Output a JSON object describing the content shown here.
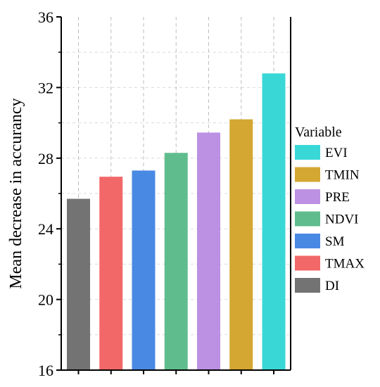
{
  "chart_data": {
    "type": "bar",
    "ylabel": "Mean decrease in accurancy",
    "xlabel": "",
    "ylim": [
      16,
      36
    ],
    "yticks": [
      "16",
      "20",
      "24",
      "28",
      "32",
      "36"
    ],
    "grid": true,
    "categories": [
      "DI",
      "TMAX",
      "SM",
      "NDVI",
      "PRE",
      "TMIN",
      "EVI"
    ],
    "values": [
      25.7,
      26.95,
      27.3,
      28.3,
      29.45,
      30.2,
      32.8
    ],
    "colors": [
      "#737373",
      "#f26868",
      "#4a89e3",
      "#5fbd8d",
      "#bc90e3",
      "#d4a732",
      "#3ad7d7"
    ],
    "legend": {
      "title": "Variable",
      "placement": "right",
      "items": [
        {
          "label": "EVI",
          "color": "#3ad7d7"
        },
        {
          "label": "TMIN",
          "color": "#d4a732"
        },
        {
          "label": "PRE",
          "color": "#bc90e3"
        },
        {
          "label": "NDVI",
          "color": "#5fbd8d"
        },
        {
          "label": "SM",
          "color": "#4a89e3"
        },
        {
          "label": "TMAX",
          "color": "#f26868"
        },
        {
          "label": " DI",
          "color": "#737373"
        }
      ]
    }
  }
}
